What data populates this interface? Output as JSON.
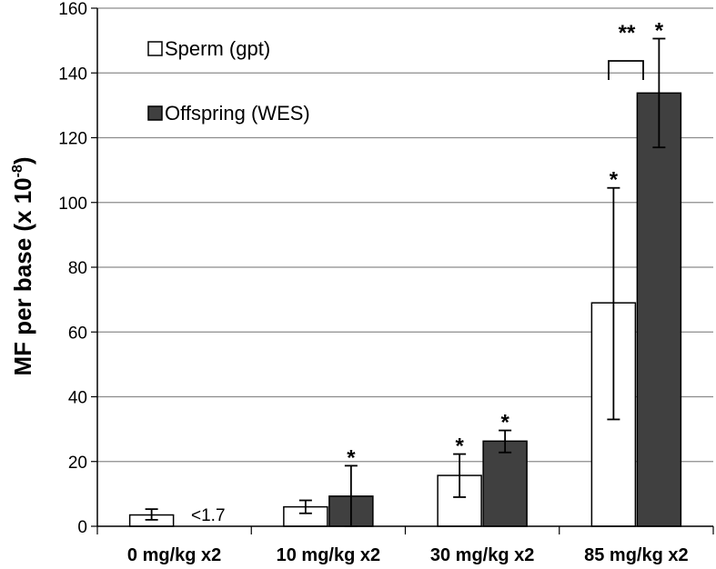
{
  "chart_data": {
    "type": "bar",
    "categories": [
      "0 mg/kg x2",
      "10 mg/kg x2",
      "30 mg/kg x2",
      "85 mg/kg x2"
    ],
    "series": [
      {
        "name": "Sperm (gpt)",
        "color": "#ffffff",
        "values": [
          3.5,
          6.0,
          15.7,
          69.0
        ],
        "error_low": [
          2.0,
          4.0,
          9.0,
          33.0
        ],
        "error_high": [
          5.3,
          8.0,
          22.3,
          104.5
        ],
        "stars": [
          "",
          "",
          "*",
          "*"
        ]
      },
      {
        "name": "Offspring (WES)",
        "color": "#404040",
        "values": [
          null,
          9.3,
          26.3,
          133.8
        ],
        "error_low": [
          null,
          0.0,
          22.8,
          117.0
        ],
        "error_high": [
          null,
          18.7,
          29.6,
          150.6
        ],
        "stars": [
          "",
          "*",
          "*",
          "*"
        ]
      }
    ],
    "ylabel_main": "MF per base (x 10",
    "ylabel_sup": "-8",
    "ylabel_end": ")",
    "ylim": [
      0,
      160
    ],
    "yticks": [
      "0",
      "20",
      "40",
      "60",
      "80",
      "100",
      "120",
      "140",
      "160"
    ],
    "grid": true,
    "legend_position": "top-left",
    "annotations": {
      "below_detection": "<1.7",
      "comparison_marker": "**"
    }
  }
}
